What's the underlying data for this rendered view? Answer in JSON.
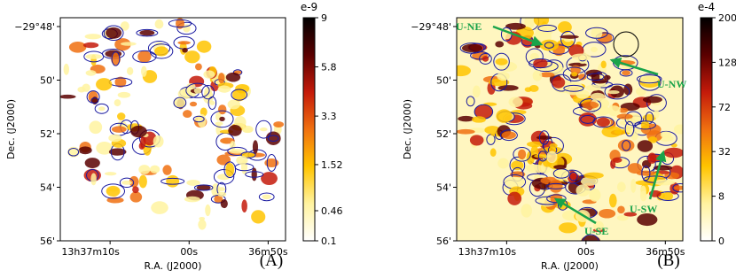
{
  "chart_data": [
    {
      "type": "image",
      "xlabel": "R.A. (J2000)",
      "ylabel": "Dec. (J2000)",
      "xlim": [
        49036.3,
        49007.8
      ],
      "xticks": [
        {
          "value": 49030,
          "label": "13h37m10s"
        },
        {
          "value": 49020,
          "label": "00s"
        },
        {
          "value": 49010,
          "label": "36m50s"
        }
      ],
      "ylim": [
        -1787.67,
        -1796
      ],
      "yticks": [
        {
          "value": -1788,
          "label": "−29°48'"
        },
        {
          "value": -1790,
          "label": "50'"
        },
        {
          "value": -1792,
          "label": "52'"
        },
        {
          "value": -1794,
          "label": "54'"
        },
        {
          "value": -1796,
          "label": "56'"
        }
      ],
      "colorbar": {
        "label": "e-9",
        "scale": "sqrt",
        "lim": [
          0.1,
          9
        ],
        "ticks": [
          0.1,
          0.46,
          1.52,
          3.3,
          5.8,
          9
        ]
      },
      "cmap": [
        "#ffffff",
        "#fff3a0",
        "#ffc400",
        "#f07010",
        "#c41a0a",
        "#5a0000",
        "#000000"
      ],
      "panel_label": "(A)"
    },
    {
      "type": "image",
      "xlabel": "R.A. (J2000)",
      "ylabel": "Dec. (J2000)",
      "xlim": [
        49036.3,
        49007.8
      ],
      "xticks": [
        {
          "value": 49030,
          "label": "13h37m10s"
        },
        {
          "value": 49020,
          "label": "00s"
        },
        {
          "value": 49010,
          "label": "36m50s"
        }
      ],
      "ylim": [
        -1787.67,
        -1796
      ],
      "yticks": [
        {
          "value": -1788,
          "label": "−29°48'"
        },
        {
          "value": -1790,
          "label": "50'"
        },
        {
          "value": -1792,
          "label": "52'"
        },
        {
          "value": -1794,
          "label": "54'"
        },
        {
          "value": -1796,
          "label": "56'"
        }
      ],
      "colorbar": {
        "label": "e-4",
        "scale": "sqrt",
        "lim": [
          0,
          200
        ],
        "ticks": [
          0,
          8,
          32,
          72,
          128,
          200
        ]
      },
      "cmap": [
        "#ffffff",
        "#fff3a0",
        "#ffc400",
        "#f07010",
        "#c41a0a",
        "#5a0000",
        "#000000"
      ],
      "panel_label": "(B)",
      "annotations": [
        "U-NE",
        "U-NW",
        "U-SW",
        "U-SE"
      ]
    }
  ]
}
